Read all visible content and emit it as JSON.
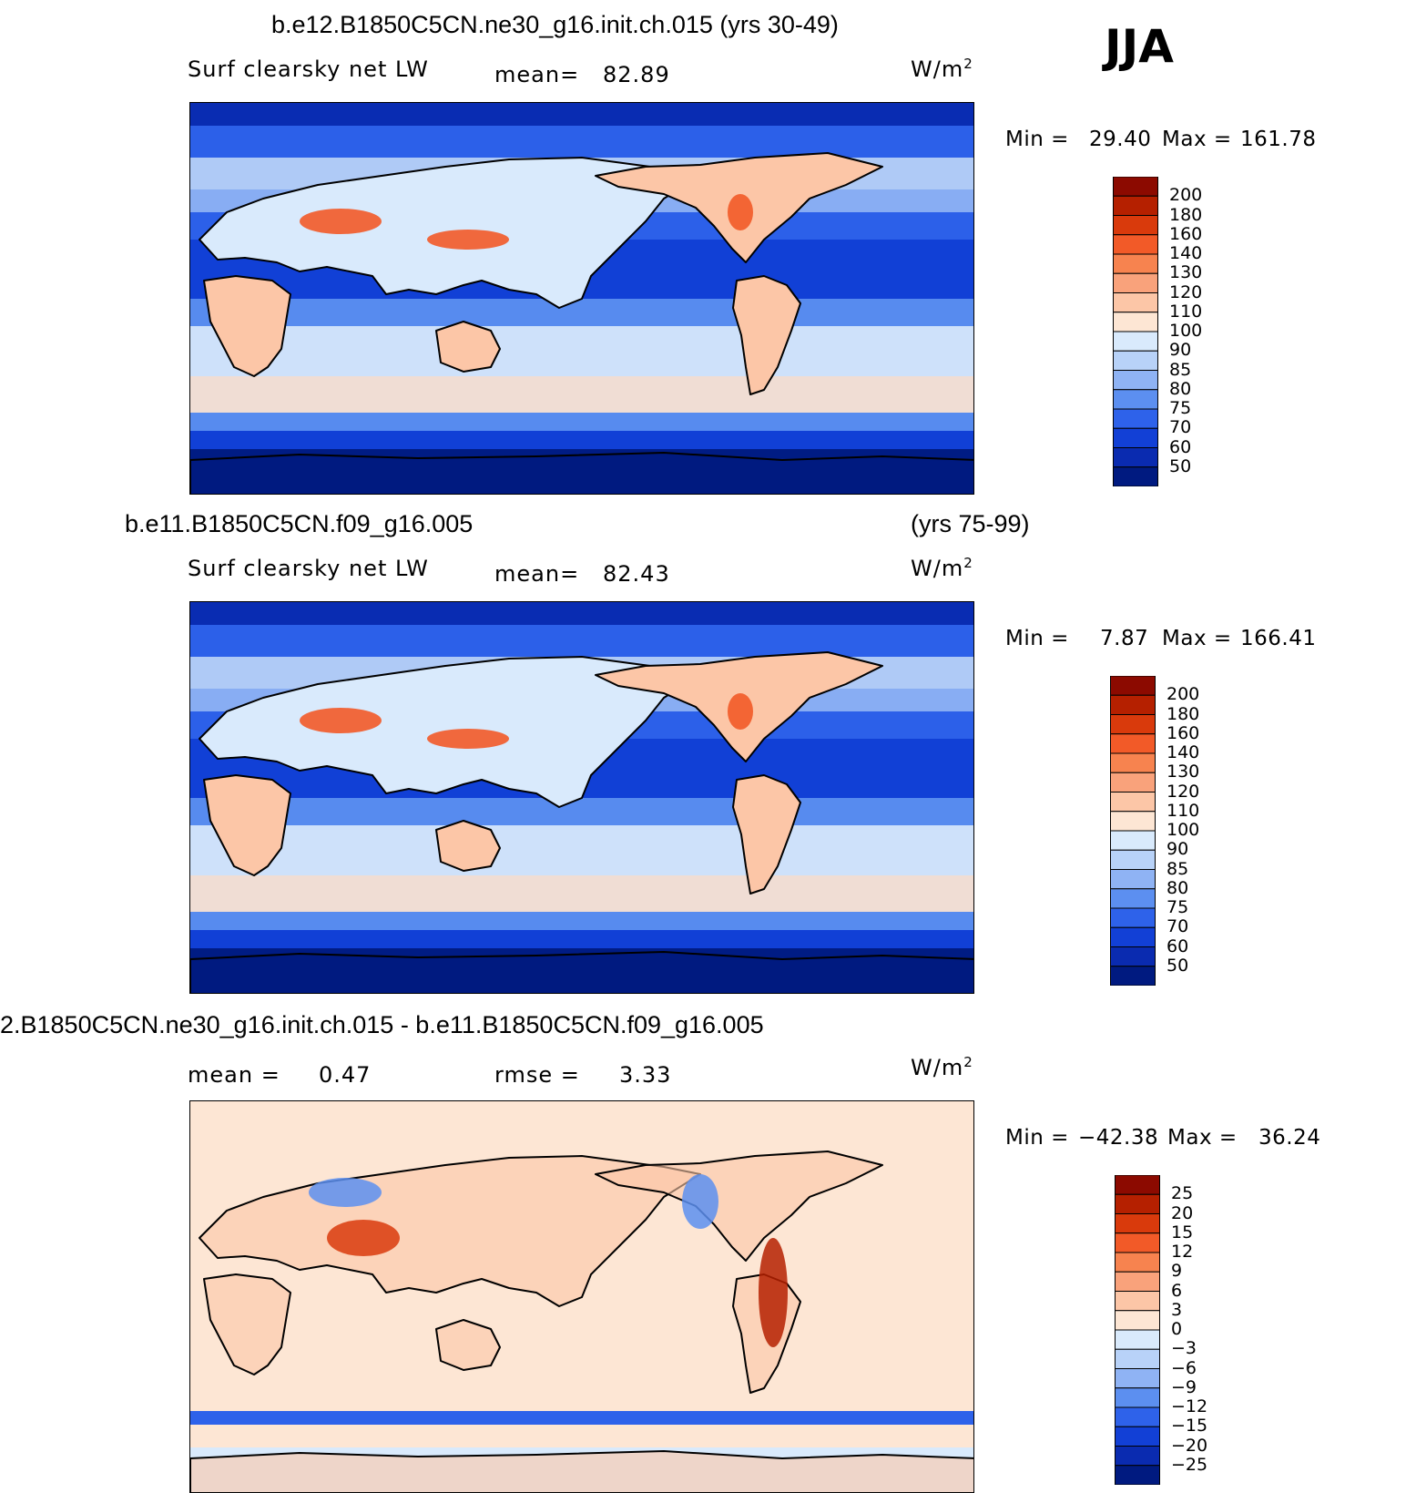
{
  "season": "JJA",
  "units": "W/m",
  "units_sup": "2",
  "panels": [
    {
      "title": "b.e12.B1850C5CN.ne30_g16.init.ch.015 (yrs 30-49)",
      "variable": "Surf clearsky net LW",
      "stat1_label": "mean=",
      "stat1_value": "82.89",
      "min_label": "Min =",
      "min_value": "29.40",
      "max_label": "Max =",
      "max_value": "161.78"
    },
    {
      "title": "b.e11.B1850C5CN.f09_g16.005",
      "title_years": "(yrs 75-99)",
      "variable": "Surf clearsky net LW",
      "stat1_label": "mean=",
      "stat1_value": "82.43",
      "min_label": "Min =",
      "min_value": "7.87",
      "max_label": "Max =",
      "max_value": "166.41"
    },
    {
      "title": "2.B1850C5CN.ne30_g16.init.ch.015 - b.e11.B1850C5CN.f09_g16.005",
      "stat1_label": "mean =",
      "stat1_value": "0.47",
      "stat2_label": "rmse =",
      "stat2_value": "3.33",
      "min_label": "Min =",
      "min_value": "−42.38",
      "max_label": "Max =",
      "max_value": "36.24"
    }
  ],
  "chart_data": [
    {
      "type": "heatmap",
      "title": "b.e12.B1850C5CN.ne30_g16.init.ch.015 (yrs 30-49)",
      "variable": "Surf clearsky net LW",
      "units": "W/m2",
      "mean": 82.89,
      "min": 29.4,
      "max": 161.78,
      "colorbar_levels": [
        "200",
        "180",
        "160",
        "140",
        "130",
        "120",
        "110",
        "100",
        "90",
        "85",
        "80",
        "75",
        "70",
        "60",
        "50"
      ],
      "colorbar_colors": [
        "#8c0a00",
        "#b52000",
        "#d93a0c",
        "#f25a28",
        "#f7834f",
        "#f9a27b",
        "#fcc6a7",
        "#fde6d4",
        "#d9eafc",
        "#b8d2f8",
        "#8fb3f4",
        "#5c8ff0",
        "#2e62ea",
        "#1240d6",
        "#0a2bb0",
        "#001a80"
      ]
    },
    {
      "type": "heatmap",
      "title": "b.e11.B1850C5CN.f09_g16.005 (yrs 75-99)",
      "variable": "Surf clearsky net LW",
      "units": "W/m2",
      "mean": 82.43,
      "min": 7.87,
      "max": 166.41,
      "colorbar_levels": [
        "200",
        "180",
        "160",
        "140",
        "130",
        "120",
        "110",
        "100",
        "90",
        "85",
        "80",
        "75",
        "70",
        "60",
        "50"
      ],
      "colorbar_colors": [
        "#8c0a00",
        "#b52000",
        "#d93a0c",
        "#f25a28",
        "#f7834f",
        "#f9a27b",
        "#fcc6a7",
        "#fde6d4",
        "#d9eafc",
        "#b8d2f8",
        "#8fb3f4",
        "#5c8ff0",
        "#2e62ea",
        "#1240d6",
        "#0a2bb0",
        "#001a80"
      ]
    },
    {
      "type": "heatmap",
      "title": "2.B1850C5CN.ne30_g16.init.ch.015 - b.e11.B1850C5CN.f09_g16.005",
      "units": "W/m2",
      "mean": 0.47,
      "rmse": 3.33,
      "min": -42.38,
      "max": 36.24,
      "colorbar_levels": [
        "25",
        "20",
        "15",
        "12",
        "9",
        "6",
        "3",
        "0",
        "−3",
        "−6",
        "−9",
        "−12",
        "−15",
        "−20",
        "−25"
      ],
      "colorbar_colors": [
        "#8c0a00",
        "#b52000",
        "#d93a0c",
        "#f25a28",
        "#f7834f",
        "#f9a27b",
        "#fcc6a7",
        "#fde6d4",
        "#d9eafc",
        "#b8d2f8",
        "#8fb3f4",
        "#5c8ff0",
        "#2e62ea",
        "#1240d6",
        "#0a2bb0",
        "#001a80"
      ]
    }
  ]
}
